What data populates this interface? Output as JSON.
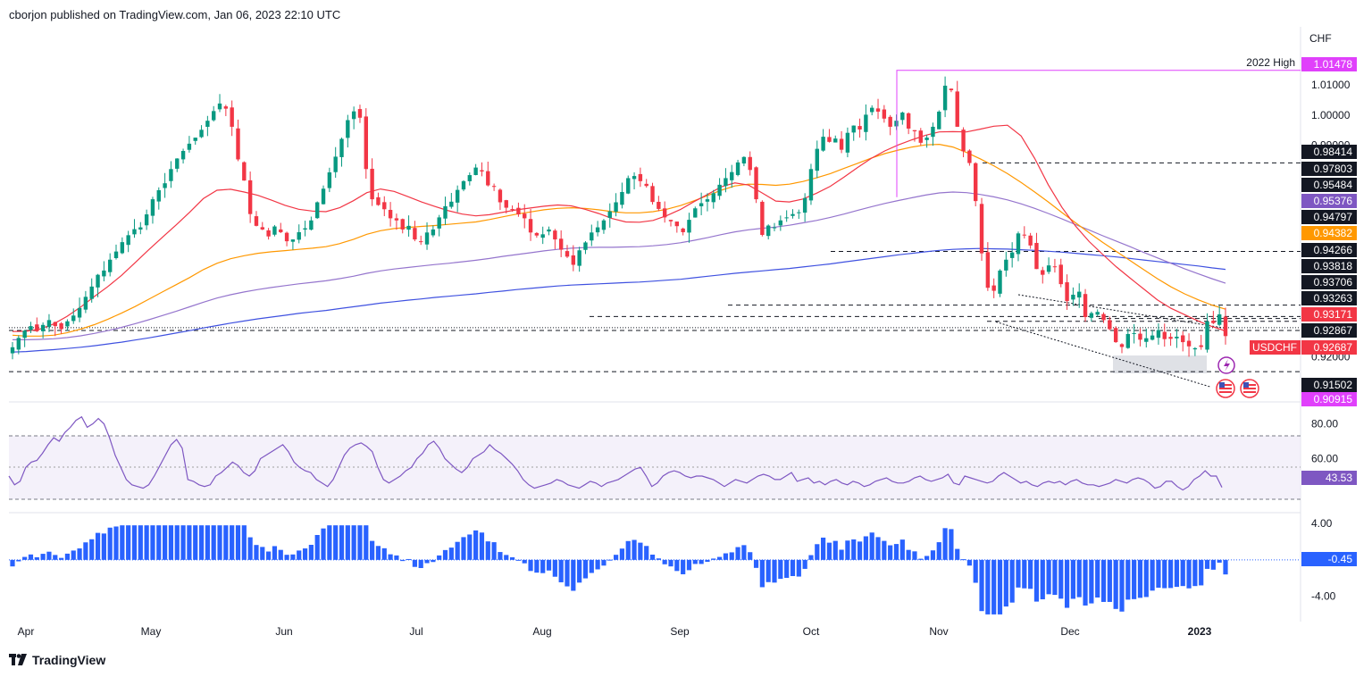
{
  "header": {
    "text": "cborjon published on TradingView.com, Jan 06, 2023 22:10 UTC"
  },
  "footer": {
    "brand": "TradingView"
  },
  "colors": {
    "up": "#089981",
    "down": "#f23645",
    "ema20": "#f23645",
    "ema50": "#ff9800",
    "ema100": "#9575cd",
    "ema200": "#3f51e0",
    "rsi": "#7e57c2",
    "osc": "#2962ff",
    "high_line": "#e040fb",
    "price_tag": "#f23645",
    "grid_text": "#131722"
  },
  "chart_data": [
    {
      "type": "candlestick",
      "symbol": "USDCHF",
      "currency": "CHF",
      "last_price": "0.92687",
      "annotations": [
        {
          "label": "2022 High",
          "value": "1.01478"
        }
      ],
      "x_tick_labels": [
        "Apr",
        "May",
        "Jun",
        "Jul",
        "Aug",
        "Sep",
        "Oct",
        "Nov",
        "Dec",
        "2023"
      ],
      "y_tick_labels": [
        "1.01000",
        "1.00000",
        "0.99000",
        "0.92000"
      ],
      "ylim": [
        0.9056,
        1.0292
      ],
      "price_tags": [
        {
          "value": 1.01478,
          "label": "1.01478",
          "color": "#e040fb"
        },
        {
          "value": 0.98414,
          "label": "0.98414",
          "color": "#131722"
        },
        {
          "value": 0.97803,
          "label": "0.97803",
          "color": "#131722"
        },
        {
          "value": 0.95484,
          "label": "0.95484",
          "color": "#131722"
        },
        {
          "value": 0.95376,
          "label": "0.95376",
          "color": "#7e57c2"
        },
        {
          "value": 0.94797,
          "label": "0.94797",
          "color": "#131722"
        },
        {
          "value": 0.94382,
          "label": "0.94382",
          "color": "#ff9800"
        },
        {
          "value": 0.94266,
          "label": "0.94266",
          "color": "#131722"
        },
        {
          "value": 0.93818,
          "label": "0.93818",
          "color": "#131722"
        },
        {
          "value": 0.93706,
          "label": "0.93706",
          "color": "#131722"
        },
        {
          "value": 0.93263,
          "label": "0.93263",
          "color": "#131722"
        },
        {
          "value": 0.93171,
          "label": "0.93171",
          "color": "#f23645"
        },
        {
          "value": 0.92867,
          "label": "0.92867",
          "color": "#131722"
        },
        {
          "value": 0.92687,
          "label": "0.92687",
          "color": "#f23645",
          "name": "USDCHF"
        },
        {
          "value": 0.91502,
          "label": "0.91502",
          "color": "#131722"
        },
        {
          "value": 0.90915,
          "label": "0.90915",
          "color": "#e040fb"
        }
      ],
      "closes": [
        0.9231,
        0.9262,
        0.9286,
        0.9301,
        0.9284,
        0.9305,
        0.9321,
        0.9301,
        0.9291,
        0.9317,
        0.9336,
        0.9361,
        0.9398,
        0.9432,
        0.9471,
        0.9485,
        0.9521,
        0.9548,
        0.9579,
        0.9602,
        0.9622,
        0.9628,
        0.9671,
        0.9721,
        0.9751,
        0.9774,
        0.9821,
        0.9856,
        0.9881,
        0.9905,
        0.9925,
        0.9951,
        0.9981,
        1.0013,
        1.0038,
        1.0021,
        0.9961,
        0.9853,
        0.9783,
        0.9672,
        0.9633,
        0.9621,
        0.9598,
        0.9631,
        0.9612,
        0.9582,
        0.9588,
        0.9612,
        0.9625,
        0.9651,
        0.9711,
        0.9756,
        0.981,
        0.9862,
        0.9921,
        0.9983,
        1.0012,
        0.9991,
        0.9821,
        0.9721,
        0.9702,
        0.9688,
        0.9658,
        0.9651,
        0.9621,
        0.9633,
        0.9588,
        0.9581,
        0.9611,
        0.9621,
        0.9661,
        0.9698,
        0.9713,
        0.9752,
        0.9781,
        0.9801,
        0.9826,
        0.9813,
        0.9767,
        0.9762,
        0.9711,
        0.9693,
        0.9688,
        0.9671,
        0.9658,
        0.9611,
        0.9601,
        0.9605,
        0.9621,
        0.9588,
        0.9554,
        0.9531,
        0.9504,
        0.9552,
        0.9578,
        0.9611,
        0.9628,
        0.9651,
        0.9681,
        0.9711,
        0.9745,
        0.9791,
        0.9798,
        0.9781,
        0.9765,
        0.9712,
        0.9689,
        0.9661,
        0.9648,
        0.9632,
        0.9612,
        0.9653,
        0.9691,
        0.9708,
        0.9721,
        0.9741,
        0.9769,
        0.9791,
        0.9811,
        0.9843,
        0.9861,
        0.9818,
        0.9721,
        0.9603,
        0.9634,
        0.9628,
        0.9651,
        0.9661,
        0.9672,
        0.9678,
        0.9725,
        0.9821,
        0.9888,
        0.9928,
        0.9911,
        0.9922,
        0.9885,
        0.9941,
        0.9965,
        0.9952,
        1.0001,
        1.0024,
        1.0011,
        0.9988,
        0.9961,
        0.9981,
        1.0008,
        0.9955,
        0.9946,
        0.9908,
        0.9925,
        0.9961,
        1.0011,
        1.0097,
        1.0082,
        0.9961,
        0.988,
        0.9841,
        0.9715,
        0.9542,
        0.9428,
        0.9418,
        0.9485,
        0.9521,
        0.9545,
        0.9608,
        0.9603,
        0.9568,
        0.949,
        0.9471,
        0.9502,
        0.9498,
        0.944,
        0.9384,
        0.9405,
        0.9415,
        0.9331,
        0.9344,
        0.9348,
        0.9321,
        0.9291,
        0.9248,
        0.9232,
        0.9275,
        0.9278,
        0.9256,
        0.9261,
        0.927,
        0.9288,
        0.9258,
        0.9259,
        0.9266,
        0.9248,
        0.9234,
        0.9228,
        0.9232,
        0.9316,
        0.9311,
        0.934,
        0.9268
      ],
      "ema20": [
        0.9283,
        0.9284,
        0.9291,
        0.9308,
        0.9333,
        0.9364,
        0.9399,
        0.9432,
        0.9469,
        0.9511,
        0.9554,
        0.9595,
        0.9636,
        0.9678,
        0.9723,
        0.9751,
        0.9754,
        0.9745,
        0.9734,
        0.9718,
        0.9701,
        0.9688,
        0.9682,
        0.968,
        0.9693,
        0.9716,
        0.9743,
        0.9755,
        0.9747,
        0.973,
        0.9712,
        0.9697,
        0.9683,
        0.9672,
        0.9666,
        0.967,
        0.9678,
        0.9686,
        0.9692,
        0.9698,
        0.9702,
        0.9699,
        0.9688,
        0.9674,
        0.9657,
        0.9646,
        0.9645,
        0.9651,
        0.9667,
        0.9687,
        0.9713,
        0.9737,
        0.9762,
        0.9775,
        0.9768,
        0.9742,
        0.9715,
        0.9712,
        0.9722,
        0.9741,
        0.9764,
        0.9794,
        0.9826,
        0.9856,
        0.9881,
        0.9901,
        0.9918,
        0.9933,
        0.9944,
        0.9945,
        0.9944,
        0.9953,
        0.9963,
        0.9966,
        0.9931,
        0.9856,
        0.9769,
        0.9694,
        0.9632,
        0.9581,
        0.9538,
        0.9497,
        0.946,
        0.9424,
        0.9388,
        0.936,
        0.9339,
        0.9318,
        0.93,
        0.9285
      ],
      "ema50": [
        0.9271,
        0.9268,
        0.9268,
        0.9271,
        0.9279,
        0.9291,
        0.9306,
        0.9324,
        0.9344,
        0.9366,
        0.939,
        0.9414,
        0.9438,
        0.9462,
        0.9488,
        0.9509,
        0.9524,
        0.9534,
        0.9542,
        0.9547,
        0.9551,
        0.9555,
        0.9559,
        0.9564,
        0.9574,
        0.9588,
        0.9605,
        0.9617,
        0.9624,
        0.9628,
        0.9631,
        0.9634,
        0.9638,
        0.9642,
        0.9646,
        0.9654,
        0.9663,
        0.9672,
        0.9679,
        0.9686,
        0.9691,
        0.9693,
        0.9691,
        0.9686,
        0.968,
        0.9676,
        0.9676,
        0.968,
        0.9688,
        0.97,
        0.9716,
        0.9733,
        0.9751,
        0.9765,
        0.9771,
        0.977,
        0.9767,
        0.9771,
        0.978,
        0.9792,
        0.9806,
        0.9823,
        0.984,
        0.9857,
        0.9872,
        0.9884,
        0.9894,
        0.9901,
        0.9903,
        0.9894,
        0.9876,
        0.9855,
        0.9832,
        0.9806,
        0.9777,
        0.9745,
        0.9712,
        0.9677,
        0.9643,
        0.961,
        0.9578,
        0.9548,
        0.9518,
        0.9488,
        0.9458,
        0.9431,
        0.9408,
        0.9388,
        0.9371,
        0.9357
      ],
      "ema100": [
        0.9256,
        0.9256,
        0.9257,
        0.9259,
        0.9263,
        0.9269,
        0.9277,
        0.9286,
        0.9297,
        0.9309,
        0.9322,
        0.9336,
        0.935,
        0.9365,
        0.938,
        0.9394,
        0.9405,
        0.9414,
        0.9422,
        0.9429,
        0.9435,
        0.9441,
        0.9446,
        0.9451,
        0.9458,
        0.9466,
        0.9476,
        0.9484,
        0.949,
        0.9495,
        0.95,
        0.9505,
        0.9509,
        0.9514,
        0.9519,
        0.9525,
        0.9532,
        0.9538,
        0.9544,
        0.955,
        0.9555,
        0.9559,
        0.9561,
        0.9562,
        0.9562,
        0.9563,
        0.9564,
        0.9567,
        0.9571,
        0.9577,
        0.9585,
        0.9594,
        0.9604,
        0.9613,
        0.962,
        0.9625,
        0.9629,
        0.9635,
        0.9643,
        0.9651,
        0.9661,
        0.9672,
        0.9684,
        0.9696,
        0.9707,
        0.9717,
        0.9726,
        0.9735,
        0.9742,
        0.9745,
        0.9743,
        0.9737,
        0.9729,
        0.9719,
        0.9706,
        0.9691,
        0.9674,
        0.9656,
        0.9637,
        0.9619,
        0.96,
        0.9582,
        0.9564,
        0.9545,
        0.9527,
        0.9509,
        0.9491,
        0.9474,
        0.9458,
        0.9443
      ],
      "ema200": [
        0.9215,
        0.9217,
        0.922,
        0.9223,
        0.9227,
        0.9231,
        0.9236,
        0.9242,
        0.9248,
        0.9255,
        0.9262,
        0.927,
        0.9278,
        0.9286,
        0.9295,
        0.9303,
        0.9311,
        0.9318,
        0.9325,
        0.9331,
        0.9337,
        0.9343,
        0.9348,
        0.9353,
        0.9359,
        0.9365,
        0.9371,
        0.9377,
        0.9382,
        0.9387,
        0.9391,
        0.9396,
        0.94,
        0.9404,
        0.9408,
        0.9413,
        0.9417,
        0.9422,
        0.9426,
        0.943,
        0.9434,
        0.9437,
        0.9439,
        0.9441,
        0.9443,
        0.9445,
        0.9447,
        0.945,
        0.9453,
        0.9456,
        0.9461,
        0.9466,
        0.9471,
        0.9476,
        0.948,
        0.9484,
        0.9488,
        0.9492,
        0.9497,
        0.9502,
        0.9507,
        0.9513,
        0.9519,
        0.9525,
        0.9531,
        0.9537,
        0.9542,
        0.9547,
        0.9552,
        0.9555,
        0.9557,
        0.9558,
        0.9557,
        0.9556,
        0.9554,
        0.9552,
        0.9549,
        0.9546,
        0.9542,
        0.9538,
        0.9534,
        0.953,
        0.9525,
        0.952,
        0.9515,
        0.951,
        0.9505,
        0.95,
        0.9494,
        0.9489
      ]
    },
    {
      "type": "line",
      "name": "RSI",
      "last_value": "43.53",
      "y_tick_labels": [
        "80.00",
        "60.00"
      ],
      "ylim": [
        30,
        90
      ],
      "values": [
        50,
        45,
        47,
        55,
        58,
        59,
        63,
        68,
        72,
        70,
        75,
        78,
        82,
        84,
        78,
        80,
        83,
        80,
        72,
        62,
        55,
        48,
        45,
        44,
        43,
        45,
        50,
        56,
        62,
        68,
        71,
        66,
        48,
        47,
        45,
        44,
        45,
        50,
        52,
        55,
        58,
        56,
        52,
        50,
        53,
        60,
        62,
        64,
        66,
        68,
        64,
        58,
        55,
        53,
        52,
        48,
        46,
        44,
        48,
        55,
        62,
        66,
        68,
        69,
        67,
        64,
        55,
        48,
        46,
        48,
        50,
        53,
        55,
        60,
        63,
        68,
        70,
        66,
        60,
        57,
        54,
        52,
        55,
        60,
        62,
        64,
        68,
        65,
        63,
        60,
        57,
        53,
        48,
        45,
        43,
        44,
        45,
        46,
        48,
        47,
        45,
        44,
        43,
        45,
        47,
        46,
        44,
        46,
        47,
        48,
        50,
        52,
        54,
        55,
        50,
        44,
        46,
        50,
        52,
        53,
        52,
        50,
        49,
        50,
        50,
        49,
        48,
        46,
        44,
        46,
        48,
        47,
        46,
        48,
        50,
        51,
        50,
        48,
        48,
        50,
        52,
        47,
        48,
        49,
        46,
        47,
        45,
        47,
        48,
        46,
        45,
        47,
        46,
        44,
        45,
        47,
        48,
        49,
        47,
        46,
        46,
        47,
        49,
        50,
        48,
        47,
        48,
        49,
        51,
        46,
        45,
        50,
        49,
        48,
        47,
        46,
        47,
        50,
        52,
        50,
        48,
        46,
        47,
        45,
        44,
        46,
        47,
        46,
        47,
        45,
        47,
        48,
        46,
        45,
        45,
        44,
        45,
        46,
        48,
        47,
        46,
        48,
        49,
        48,
        46,
        43,
        44,
        47,
        47,
        44,
        42,
        44,
        48,
        50,
        53,
        50,
        50,
        43.5
      ]
    },
    {
      "type": "bar",
      "name": "Oscillator",
      "last_value": "-0.45",
      "y_tick_labels": [
        "4.00",
        "-4.00"
      ],
      "ylim": [
        -6.4,
        4.8
      ]
    }
  ]
}
